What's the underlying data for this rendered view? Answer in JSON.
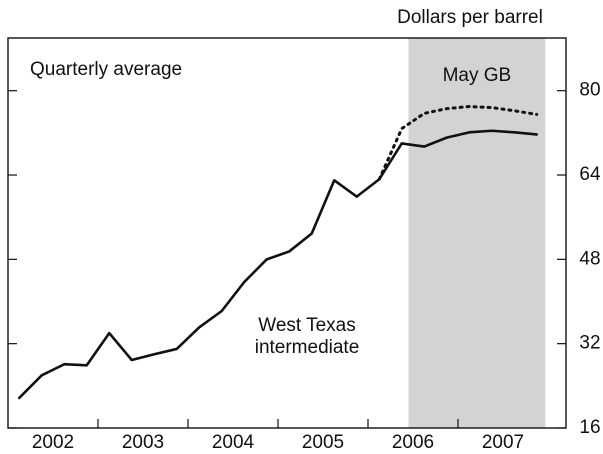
{
  "chart_data": {
    "type": "line",
    "y_label": "Dollars per barrel",
    "subtitle": "Quarterly average",
    "shade": {
      "label": "May GB",
      "range": [
        2006.45,
        2007.97
      ],
      "color": "#d3d3d3"
    },
    "annotation": [
      "West Texas",
      "intermediate"
    ],
    "x": [
      2002.125,
      2002.375,
      2002.625,
      2002.875,
      2003.125,
      2003.375,
      2003.625,
      2003.875,
      2004.125,
      2004.375,
      2004.625,
      2004.875,
      2005.125,
      2005.375,
      2005.625,
      2005.875,
      2006.125,
      2006.375,
      2006.625,
      2006.875,
      2007.125,
      2007.375,
      2007.625,
      2007.875
    ],
    "series": [
      {
        "color": "#111111",
        "dash": "solid",
        "values": [
          21.7,
          26.0,
          28.1,
          27.9,
          34.0,
          28.9,
          30.0,
          31.0,
          35.1,
          38.2,
          43.7,
          48.0,
          49.5,
          52.9,
          63.0,
          59.9,
          63.2,
          70.0,
          69.4,
          71.1,
          72.1,
          72.4,
          72.1,
          71.7
        ]
      },
      {
        "color": "#111111",
        "dash": "dotted",
        "values": [
          null,
          null,
          null,
          null,
          null,
          null,
          null,
          null,
          null,
          null,
          null,
          null,
          null,
          null,
          null,
          null,
          63.2,
          72.8,
          75.7,
          76.6,
          77.0,
          76.8,
          76.2,
          75.5
        ]
      }
    ],
    "xlim": [
      2002,
      2008.2
    ],
    "xticks": [
      {
        "value": 2002.5,
        "label": "2002"
      },
      {
        "value": 2003.5,
        "label": "2003"
      },
      {
        "value": 2004.5,
        "label": "2004"
      },
      {
        "value": 2005.5,
        "label": "2005"
      },
      {
        "value": 2006.5,
        "label": "2006"
      },
      {
        "value": 2007.5,
        "label": "2007"
      }
    ],
    "ylim": [
      16,
      90
    ],
    "yticks": [
      16,
      32,
      48,
      64,
      80
    ]
  }
}
